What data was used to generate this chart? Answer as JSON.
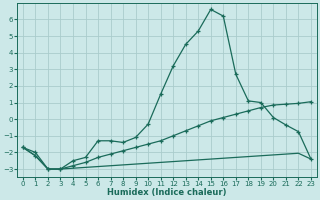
{
  "title": "",
  "xlabel": "Humidex (Indice chaleur)",
  "bg_color": "#cce8e8",
  "grid_color": "#aacccc",
  "line_color": "#1a6b5a",
  "xlim": [
    -0.5,
    23.5
  ],
  "ylim": [
    -3.5,
    7.0
  ],
  "yticks": [
    -3,
    -2,
    -1,
    0,
    1,
    2,
    3,
    4,
    5,
    6
  ],
  "xticks": [
    0,
    1,
    2,
    3,
    4,
    5,
    6,
    7,
    8,
    9,
    10,
    11,
    12,
    13,
    14,
    15,
    16,
    17,
    18,
    19,
    20,
    21,
    22,
    23
  ],
  "line1_x": [
    0,
    1,
    2,
    3,
    4,
    5,
    6,
    7,
    8,
    9,
    10,
    11,
    12,
    13,
    14,
    15,
    16,
    17,
    18,
    19,
    20,
    21,
    22,
    23
  ],
  "line1_y": [
    -1.7,
    -2.2,
    -3.0,
    -3.0,
    -2.5,
    -2.3,
    -1.3,
    -1.3,
    -1.4,
    -1.1,
    -0.3,
    1.5,
    3.2,
    4.5,
    5.3,
    6.6,
    6.2,
    2.7,
    1.1,
    1.0,
    0.1,
    -0.35,
    -0.75,
    -2.4
  ],
  "line2_x": [
    0,
    1,
    2,
    3,
    4,
    5,
    6,
    7,
    8,
    9,
    10,
    11,
    12,
    13,
    14,
    15,
    16,
    17,
    18,
    19,
    20,
    21,
    22,
    23
  ],
  "line2_y": [
    -1.7,
    -2.0,
    -3.0,
    -3.0,
    -2.8,
    -2.6,
    -2.3,
    -2.1,
    -1.9,
    -1.7,
    -1.5,
    -1.3,
    -1.0,
    -0.7,
    -0.4,
    -0.1,
    0.1,
    0.3,
    0.5,
    0.7,
    0.85,
    0.9,
    0.95,
    1.05
  ],
  "line3_x": [
    0,
    1,
    2,
    3,
    4,
    5,
    6,
    7,
    8,
    9,
    10,
    11,
    12,
    13,
    14,
    15,
    16,
    17,
    18,
    19,
    20,
    21,
    22,
    23
  ],
  "line3_y": [
    -1.7,
    -2.2,
    -3.0,
    -3.0,
    -2.95,
    -2.9,
    -2.85,
    -2.8,
    -2.75,
    -2.7,
    -2.65,
    -2.6,
    -2.55,
    -2.5,
    -2.45,
    -2.4,
    -2.35,
    -2.3,
    -2.25,
    -2.2,
    -2.15,
    -2.1,
    -2.05,
    -2.4
  ]
}
